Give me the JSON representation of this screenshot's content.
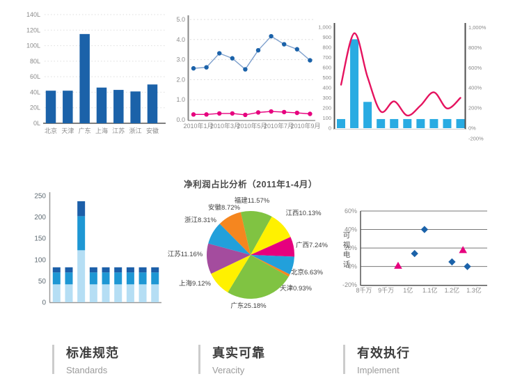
{
  "chart_data": [
    {
      "type": "bar",
      "categories": [
        "北京",
        "天津",
        "广东",
        "上海",
        "江苏",
        "浙江",
        "安徽"
      ],
      "values": [
        42,
        42,
        115,
        46,
        43,
        41,
        50
      ],
      "y_ticks": [
        "140L",
        "120L",
        "100L",
        "80L",
        "60L",
        "40L",
        "20L",
        "0L"
      ],
      "ylim": [
        0,
        140
      ],
      "bar_color": "#1B62A9",
      "grid": "dotted"
    },
    {
      "type": "line",
      "x_tick_labels": [
        "2010年1月",
        "2010年3月",
        "2010年5月",
        "2010年7月",
        "2010年9月"
      ],
      "y_ticks": [
        "5.0",
        "4.0",
        "3.0",
        "2.0",
        "1.0",
        "0.0"
      ],
      "ylim": [
        0,
        5
      ],
      "series": [
        {
          "name": "blue-series",
          "marker_color": "#1B62A9",
          "line_color": "#7D9FCC",
          "values": [
            2.6,
            2.65,
            3.35,
            3.1,
            2.55,
            3.5,
            4.2,
            3.8,
            3.55,
            3.0
          ]
        },
        {
          "name": "pink-series",
          "marker_color": "#E6007E",
          "line_color": "#E6007E",
          "values": [
            0.3,
            0.3,
            0.35,
            0.35,
            0.28,
            0.4,
            0.45,
            0.42,
            0.38,
            0.33
          ]
        }
      ]
    },
    {
      "type": "bar+line",
      "bar_values": [
        90,
        880,
        260,
        90,
        90,
        90,
        90,
        90,
        90,
        90
      ],
      "line_values": [
        430,
        940,
        505,
        165,
        265,
        125,
        225,
        355,
        195,
        300
      ],
      "left_ticks": [
        "1,000",
        "900",
        "800",
        "700",
        "600",
        "500",
        "400",
        "300",
        "200",
        "100",
        "0"
      ],
      "right_ticks": [
        "1,000%",
        "800%",
        "600%",
        "400%",
        "200%",
        "0%",
        "-200%"
      ],
      "left_ylim": [
        0,
        1000
      ],
      "right_ylim": [
        -200,
        1000
      ],
      "bar_color": "#29ABE2",
      "line_color": "#E5135F"
    },
    {
      "type": "stacked-bar",
      "y_ticks": [
        "250",
        "200",
        "150",
        "100",
        "50",
        "0"
      ],
      "ylim": [
        0,
        250
      ],
      "segment_colors": [
        "#B5DEF4",
        "#1E97D4",
        "#1C5FA9"
      ],
      "bars": [
        [
          42,
          28,
          12
        ],
        [
          42,
          28,
          12
        ],
        [
          122,
          80,
          35
        ],
        [
          42,
          28,
          12
        ],
        [
          42,
          28,
          12
        ],
        [
          42,
          28,
          12
        ],
        [
          42,
          28,
          12
        ],
        [
          42,
          28,
          12
        ],
        [
          42,
          28,
          12
        ]
      ]
    },
    {
      "type": "pie",
      "title": "净利润占比分析（2011年1-4月）",
      "slices": [
        {
          "name": "福建",
          "pct": "11.57%",
          "value": 11.57,
          "color": "#80C342"
        },
        {
          "name": "江西",
          "pct": "10.13%",
          "value": 10.13,
          "color": "#FFF100"
        },
        {
          "name": "广西",
          "pct": "7.24%",
          "value": 7.24,
          "color": "#E6007E"
        },
        {
          "name": "北京",
          "pct": "6.63%",
          "value": 6.63,
          "color": "#22A0DB"
        },
        {
          "name": "天津",
          "pct": "0.93%",
          "value": 0.93,
          "color": "#F5861F"
        },
        {
          "name": "广东",
          "pct": "25.18%",
          "value": 25.18,
          "color": "#80C342"
        },
        {
          "name": "上海",
          "pct": "9.12%",
          "value": 9.12,
          "color": "#FFF100"
        },
        {
          "name": "江苏",
          "pct": "11.16%",
          "value": 11.16,
          "color": "#A44C9E"
        },
        {
          "name": "浙江",
          "pct": "8.31%",
          "value": 8.31,
          "color": "#22A0DB"
        },
        {
          "name": "安徽",
          "pct": "8.72%",
          "value": 8.72,
          "color": "#F5861F"
        }
      ]
    },
    {
      "type": "scatter",
      "ylabel": "可视电话",
      "y_ticks": [
        "60%",
        "40%",
        "20%",
        "0%",
        "-20%"
      ],
      "x_ticks": [
        "8千万",
        "9千万",
        "1亿",
        "1.1亿",
        "1.2亿",
        "1.3亿"
      ],
      "xlim_yi": [
        0.8,
        1.3
      ],
      "ylim_pct": [
        -20,
        60
      ],
      "series": [
        {
          "name": "diamond-series",
          "marker": "diamond",
          "color": "#1B62A9",
          "points": [
            [
              1.03,
              14
            ],
            [
              1.075,
              40
            ],
            [
              1.2,
              5
            ],
            [
              1.27,
              0
            ]
          ]
        },
        {
          "name": "triangle-series",
          "marker": "triangle",
          "color": "#E6007E",
          "points": [
            [
              0.955,
              1
            ],
            [
              1.25,
              18
            ]
          ]
        }
      ]
    }
  ],
  "features": [
    {
      "zh": "标准规范",
      "en": "Standards"
    },
    {
      "zh": "真实可靠",
      "en": "Veracity"
    },
    {
      "zh": "有效执行",
      "en": "Implement"
    }
  ]
}
